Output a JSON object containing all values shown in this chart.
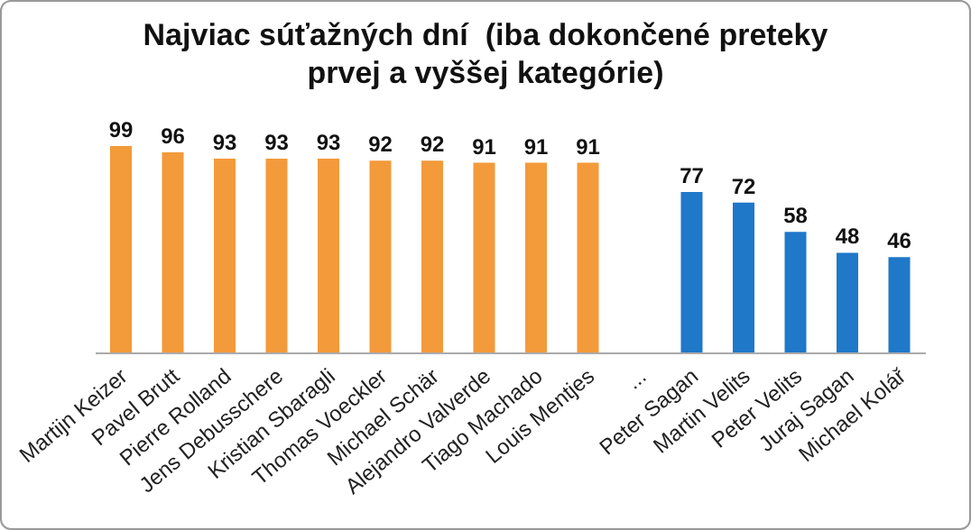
{
  "chart_data": {
    "type": "bar",
    "title": "Najviac súťažných dní  (iba dokončené preteky prvej a vyššej kategórie)",
    "categories": [
      "Martijn Keizer",
      "Pavel Brutt",
      "Pierre Rolland",
      "Jens Debusschere",
      "Kristian Sbaragli",
      "Thomas Voeckler",
      "Michael Schär",
      "Alejandro Valverde",
      "Tiago Machado",
      "Louis Mentjes",
      "...",
      "Peter Sagan",
      "Martin Velits",
      "Peter Velits",
      "Juraj Sagan",
      "Michael Kolář"
    ],
    "values": [
      99,
      96,
      93,
      93,
      93,
      92,
      92,
      91,
      91,
      91,
      null,
      77,
      72,
      58,
      48,
      46
    ],
    "colors": [
      "#f39a3a",
      "#f39a3a",
      "#f39a3a",
      "#f39a3a",
      "#f39a3a",
      "#f39a3a",
      "#f39a3a",
      "#f39a3a",
      "#f39a3a",
      "#f39a3a",
      null,
      "#1f78c8",
      "#1f78c8",
      "#1f78c8",
      "#1f78c8",
      "#1f78c8"
    ],
    "data_labels": true,
    "grid": false,
    "legend": false
  }
}
